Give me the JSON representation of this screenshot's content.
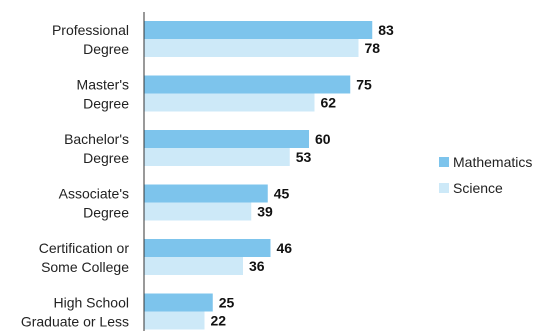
{
  "chart_data": {
    "type": "bar",
    "orientation": "horizontal",
    "categories": [
      [
        "Professional",
        "Degree"
      ],
      [
        "Master's",
        "Degree"
      ],
      [
        "Bachelor's",
        "Degree"
      ],
      [
        "Associate's",
        "Degree"
      ],
      [
        "Certification or",
        "Some College"
      ],
      [
        "High School",
        "Graduate or Less"
      ]
    ],
    "series": [
      {
        "name": "Mathematics",
        "color": "#7DC4EC",
        "values": [
          83,
          75,
          60,
          45,
          46,
          25
        ]
      },
      {
        "name": "Science",
        "color": "#CDE9F8",
        "values": [
          78,
          62,
          53,
          39,
          36,
          22
        ]
      }
    ],
    "xlim": [
      0,
      100
    ],
    "grid": false,
    "legend_position": "right"
  }
}
